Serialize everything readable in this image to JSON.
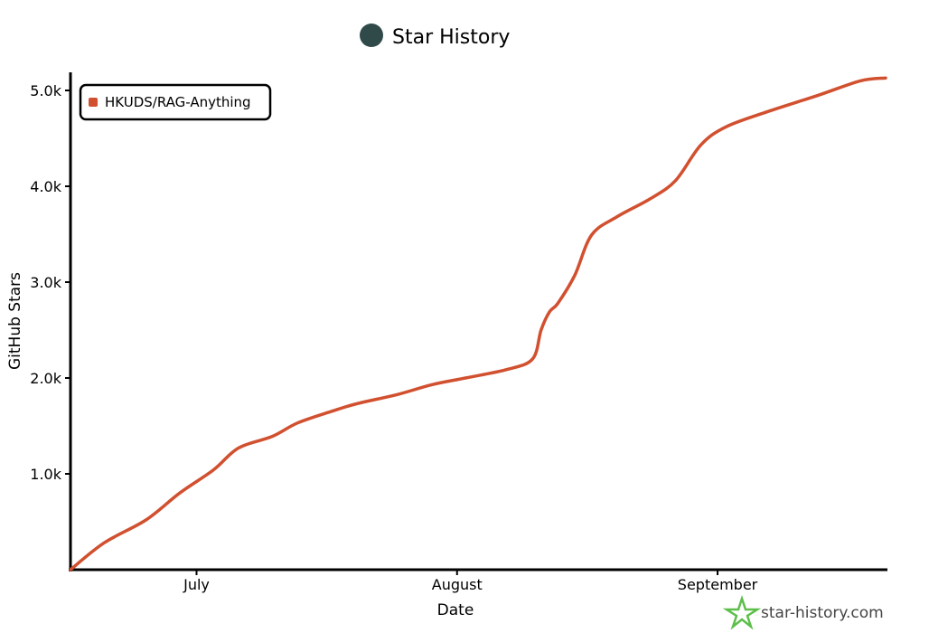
{
  "chart_data": {
    "type": "line",
    "title": "Star History",
    "xlabel": "Date",
    "ylabel": "GitHub Stars",
    "ylim": [
      0,
      5150
    ],
    "xlim": [
      "2025-06-16",
      "2025-09-21"
    ],
    "yticks": [
      {
        "value": 1000,
        "label": "1.0k"
      },
      {
        "value": 2000,
        "label": "2.0k"
      },
      {
        "value": 3000,
        "label": "3.0k"
      },
      {
        "value": 4000,
        "label": "4.0k"
      },
      {
        "value": 5000,
        "label": "5.0k"
      }
    ],
    "xticks": [
      {
        "value": "2025-07-01",
        "label": "July"
      },
      {
        "value": "2025-08-01",
        "label": "August"
      },
      {
        "value": "2025-09-01",
        "label": "September"
      }
    ],
    "legend_position": "top-left",
    "series": [
      {
        "name": "HKUDS/RAG-Anything",
        "color": "#d1502f",
        "points": [
          [
            "2025-06-16",
            0
          ],
          [
            "2025-06-20",
            280
          ],
          [
            "2025-06-25",
            520
          ],
          [
            "2025-06-29",
            800
          ],
          [
            "2025-07-03",
            1040
          ],
          [
            "2025-07-06",
            1270
          ],
          [
            "2025-07-10",
            1390
          ],
          [
            "2025-07-13",
            1530
          ],
          [
            "2025-07-17",
            1650
          ],
          [
            "2025-07-20",
            1730
          ],
          [
            "2025-07-25",
            1830
          ],
          [
            "2025-07-29",
            1930
          ],
          [
            "2025-08-02",
            2000
          ],
          [
            "2025-08-07",
            2090
          ],
          [
            "2025-08-10",
            2200
          ],
          [
            "2025-08-11",
            2500
          ],
          [
            "2025-08-12",
            2690
          ],
          [
            "2025-08-13",
            2780
          ],
          [
            "2025-08-15",
            3070
          ],
          [
            "2025-08-17",
            3490
          ],
          [
            "2025-08-20",
            3680
          ],
          [
            "2025-08-24",
            3870
          ],
          [
            "2025-08-27",
            4060
          ],
          [
            "2025-08-30",
            4430
          ],
          [
            "2025-09-02",
            4620
          ],
          [
            "2025-09-07",
            4780
          ],
          [
            "2025-09-13",
            4950
          ],
          [
            "2025-09-18",
            5100
          ],
          [
            "2025-09-21",
            5130
          ]
        ]
      }
    ]
  },
  "watermark": "star-history.com",
  "logo_icon": "star-icon",
  "avatar_icon": "avatar-icon"
}
